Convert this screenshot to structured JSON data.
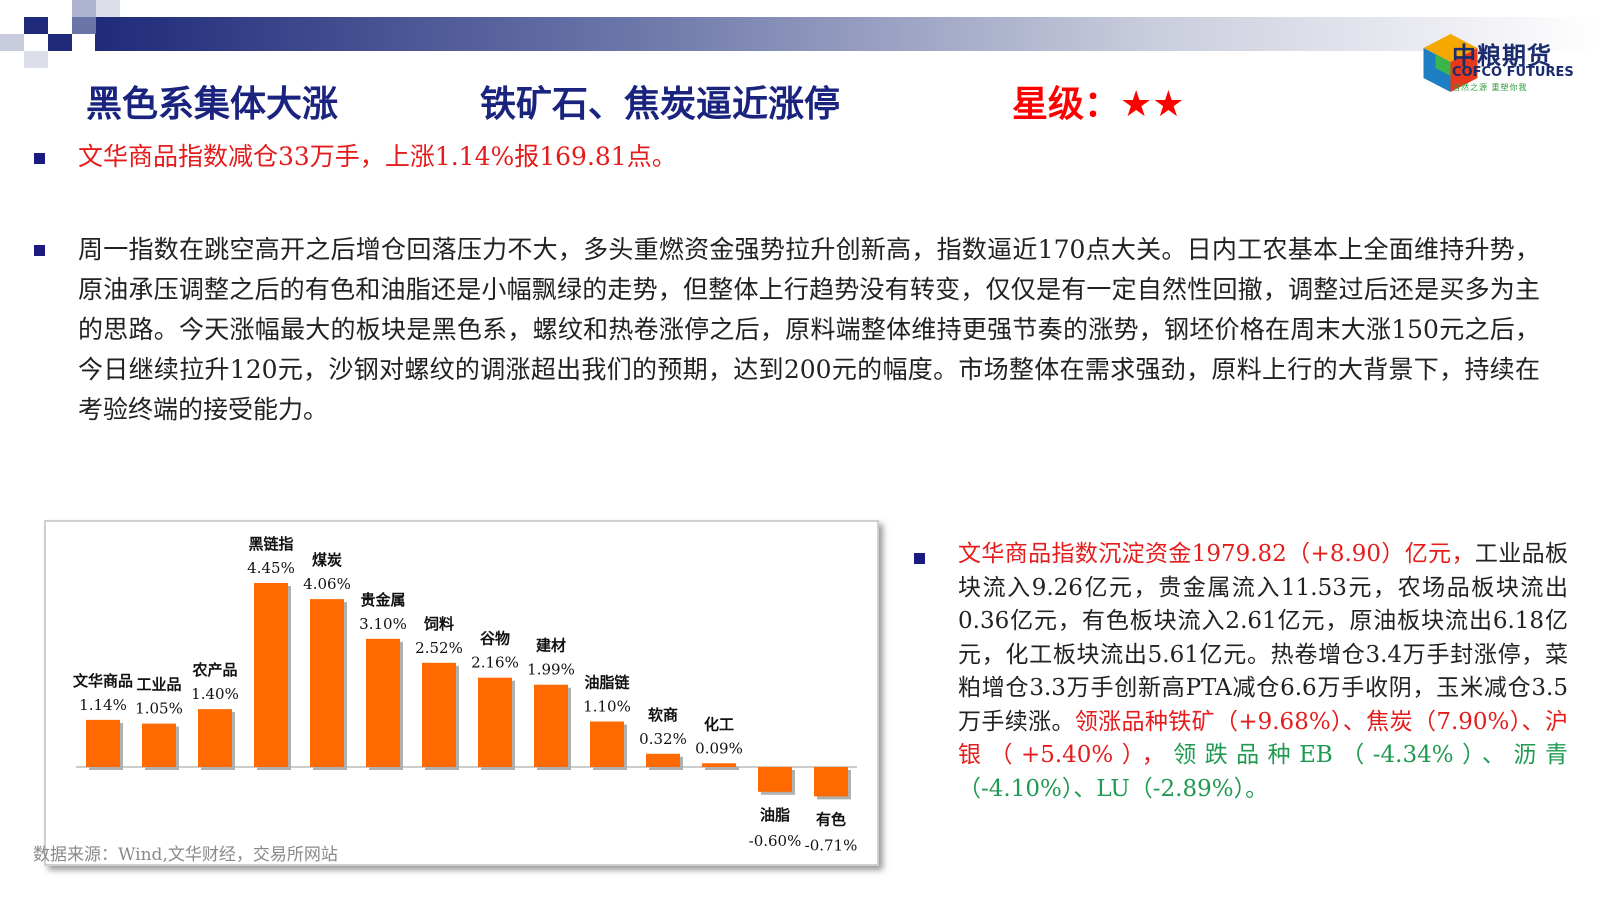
{
  "header": {
    "colors": {
      "navy": "#1f2a7a",
      "mid": "#6a75a8",
      "light": "#c9ccdc"
    },
    "logo": {
      "name_zh": "中粮期货",
      "name_en": "COFCO FUTURES",
      "tagline": "自然之源 重塑你我",
      "icon": "cofco-cube-logo-icon"
    }
  },
  "titles": {
    "t1": "黑色系集体大涨",
    "t2": "铁矿石、焦炭逼近涨停",
    "rating_label": "星级：",
    "rating_stars": "★★"
  },
  "bullets": {
    "b1": "文华商品指数减仓33万手，上涨1.14%报169.81点。",
    "b2": "周一指数在跳空高开之后增仓回落压力不大，多头重燃资金强势拉升创新高，指数逼近170点大关。日内工农基本上全面维持升势，原油承压调整之后的有色和油脂还是小幅飘绿的走势，但整体上行趋势没有转变，仅仅是有一定自然性回撤，调整过后还是买多为主的思路。今天涨幅最大的板块是黑色系，螺纹和热卷涨停之后，原料端整体维持更强节奏的涨势，钢坯价格在周末大涨150元之后，今日继续拉升120元，沙钢对螺纹的调涨超出我们的预期，达到200元的幅度。市场整体在需求强劲，原料上行的大背景下，持续在考验终端的接受能力。",
    "b3_red": "文华商品指数沉淀资金1979.82（+8.90）亿元，",
    "b3_main": "工业品板块流入9.26亿元，贵金属流入11.53元，农场品板块流出0.36亿元，有色板块流入2.61亿元，原油板块流出6.18亿元，化工板块流出5.61亿元。热卷增仓3.4万手封涨停，菜粕增仓3.3万手创新高PTA减仓6.6万手收阴，玉米减仓3.5万手续涨。",
    "b3_up_label": "领涨品种铁矿（+9.68%）、焦炭（7.90%）、沪银（+5.40%），",
    "b3_down_label": "领跌品种EB（-4.34%）、沥青（-4.10%）、LU（-2.89%）。"
  },
  "source": "数据来源：Wind,文华财经，交易所网站",
  "chart_data": {
    "type": "bar",
    "categories": [
      "文华商品",
      "工业品",
      "农产品",
      "黑链指",
      "煤炭",
      "贵金属",
      "饲料",
      "谷物",
      "建材",
      "油脂链",
      "软商",
      "化工",
      "油脂",
      "有色"
    ],
    "values": [
      1.14,
      1.05,
      1.4,
      4.45,
      4.06,
      3.1,
      2.52,
      2.16,
      1.99,
      1.1,
      0.32,
      0.09,
      -0.6,
      -0.71
    ],
    "value_labels": [
      "1.14%",
      "1.05%",
      "1.40%",
      "4.45%",
      "4.06%",
      "3.10%",
      "2.52%",
      "2.16%",
      "1.99%",
      "1.10%",
      "0.32%",
      "0.09%",
      "-0.60%",
      "-0.71%"
    ],
    "bar_color": "#ff6a00",
    "title": "",
    "xlabel": "",
    "ylabel": "",
    "grid": false,
    "legend": "none"
  }
}
